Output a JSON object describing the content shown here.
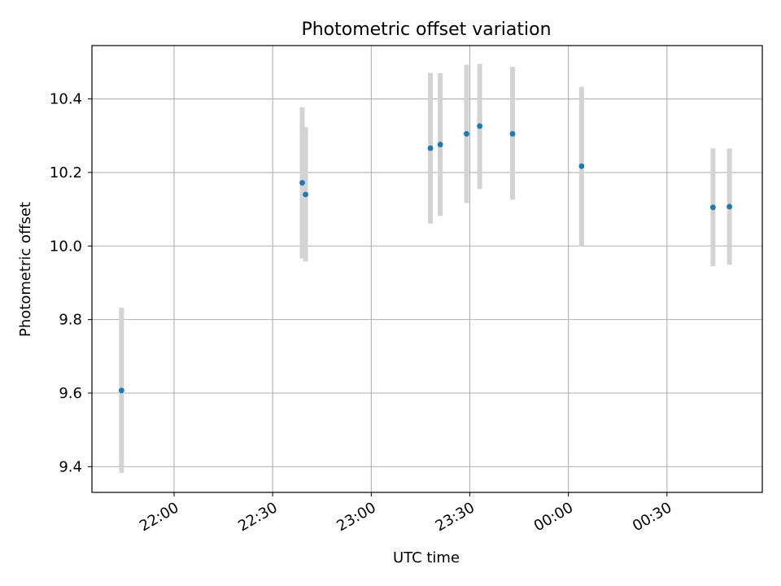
{
  "chart_data": {
    "type": "scatter",
    "title": "Photometric offset variation",
    "xlabel": "UTC time",
    "ylabel": "Photometric offset",
    "grid": true,
    "x_is_time": true,
    "xlim": [
      "21:35",
      "00:59"
    ],
    "ylim": [
      9.33,
      10.545
    ],
    "x_ticks": [
      "22:00",
      "22:30",
      "23:00",
      "23:30",
      "00:00",
      "00:30"
    ],
    "y_ticks": [
      9.4,
      9.6,
      9.8,
      10.0,
      10.2,
      10.4
    ],
    "y_tick_labels": [
      "9.4",
      "9.6",
      "9.8",
      "10.0",
      "10.2",
      "10.4"
    ],
    "colors": {
      "point": "#1f77b4",
      "errorbar": "#d3d3d3",
      "grid": "#b0b0b0",
      "axes": "#000000"
    },
    "points": [
      {
        "x": "21:44",
        "y": 9.607,
        "err_low": 9.383,
        "err_high": 9.832
      },
      {
        "x": "22:39",
        "y": 10.172,
        "err_low": 9.966,
        "err_high": 10.377
      },
      {
        "x": "22:40",
        "y": 10.14,
        "err_low": 9.958,
        "err_high": 10.323
      },
      {
        "x": "23:18",
        "y": 10.266,
        "err_low": 10.061,
        "err_high": 10.471
      },
      {
        "x": "23:21",
        "y": 10.276,
        "err_low": 10.082,
        "err_high": 10.47
      },
      {
        "x": "23:29",
        "y": 10.305,
        "err_low": 10.117,
        "err_high": 10.493
      },
      {
        "x": "23:33",
        "y": 10.326,
        "err_low": 10.155,
        "err_high": 10.495
      },
      {
        "x": "23:43",
        "y": 10.305,
        "err_low": 10.126,
        "err_high": 10.487
      },
      {
        "x": "00:04",
        "y": 10.217,
        "err_low": 10.0,
        "err_high": 10.433
      },
      {
        "x": "00:44",
        "y": 10.105,
        "err_low": 9.945,
        "err_high": 10.265
      },
      {
        "x": "00:49",
        "y": 10.107,
        "err_low": 9.949,
        "err_high": 10.265
      }
    ]
  }
}
